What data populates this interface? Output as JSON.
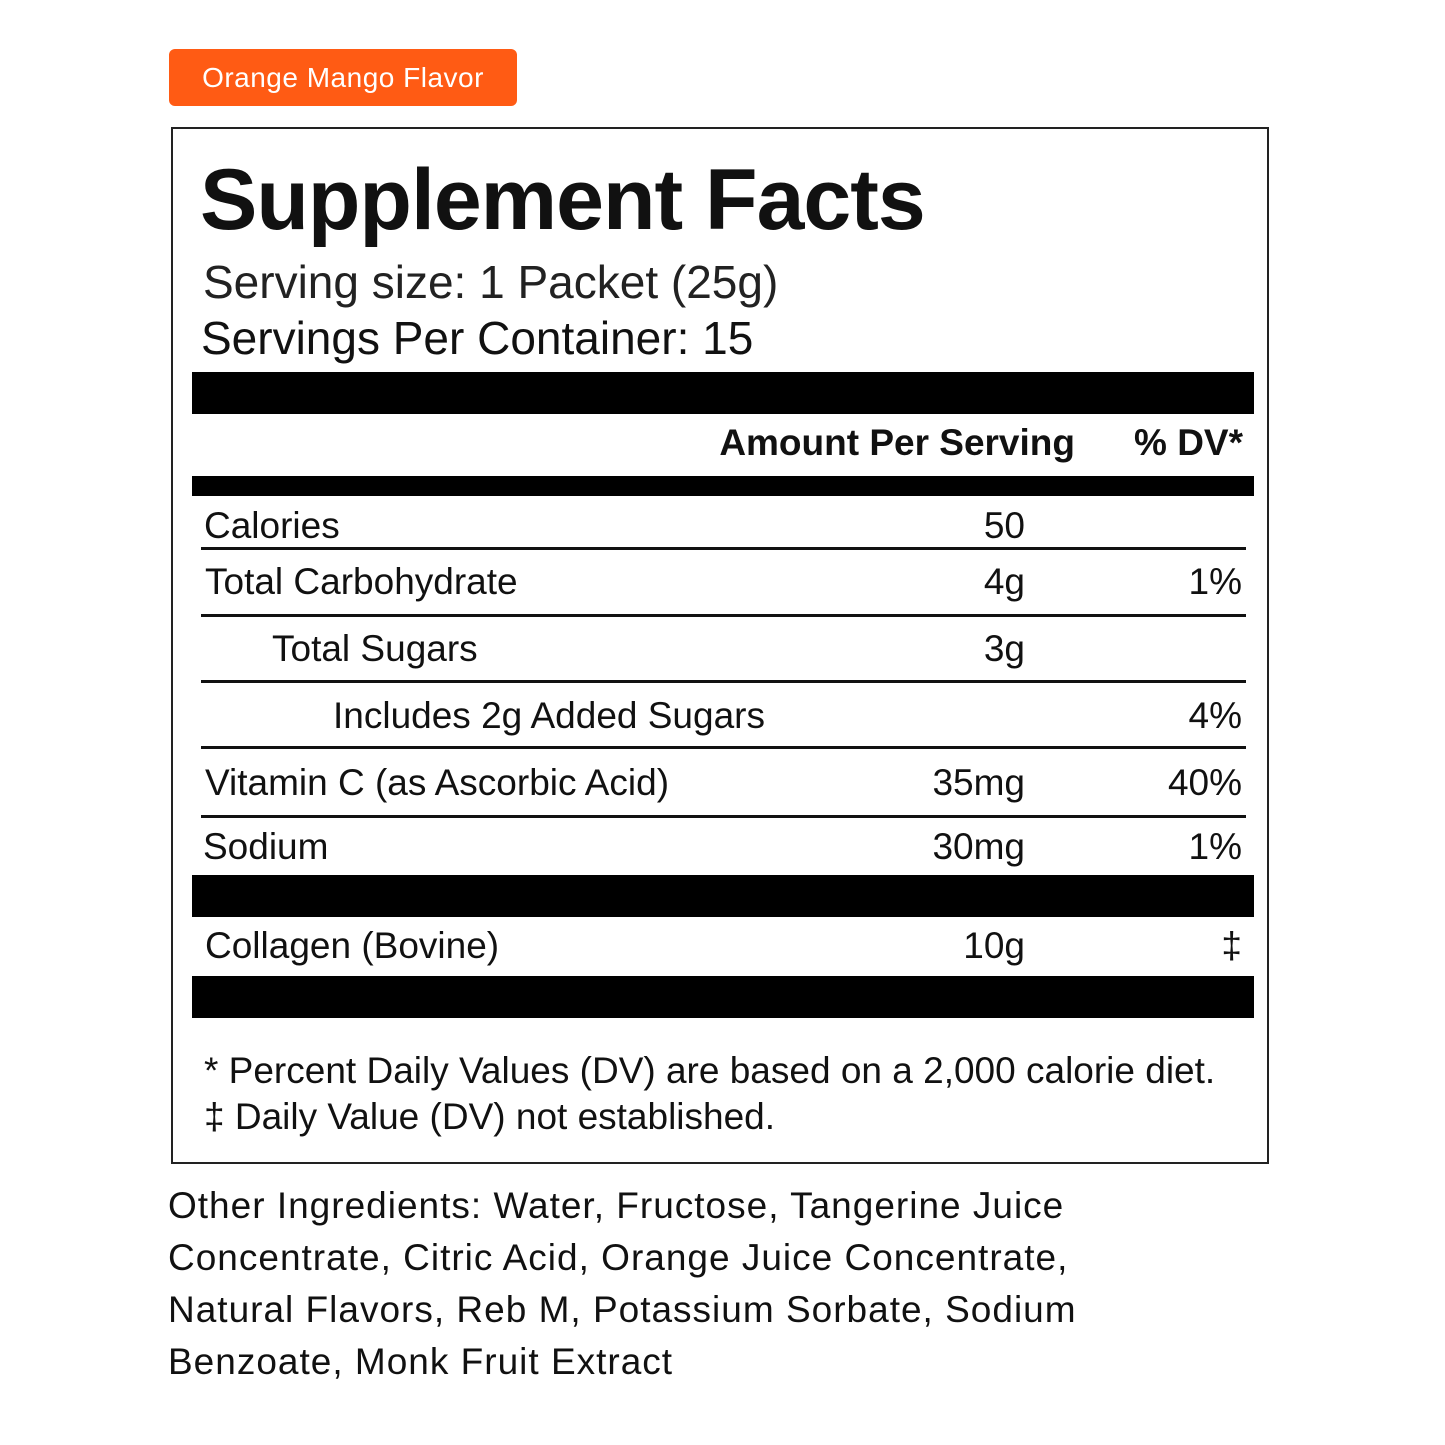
{
  "flavor_badge": "Orange Mango Flavor",
  "colors": {
    "badge": "#ff5b14",
    "bars": "#000000",
    "text": "#111111"
  },
  "facts": {
    "title": "Supplement Facts",
    "serving_size": "Serving size: 1 Packet (25g)",
    "servings_per_container": "Servings Per Container: 15",
    "header": {
      "amount": "Amount Per Serving",
      "dv": "% DV*"
    },
    "rows": [
      {
        "label": "Calories",
        "amount": "50",
        "dv": ""
      },
      {
        "label": "Total Carbohydrate",
        "amount": "4g",
        "dv": "1%"
      },
      {
        "label": "Total Sugars",
        "amount": "3g",
        "dv": ""
      },
      {
        "label": "Includes 2g Added Sugars",
        "amount": "",
        "dv": "4%"
      },
      {
        "label": "Vitamin C (as Ascorbic Acid)",
        "amount": "35mg",
        "dv": "40%"
      },
      {
        "label": "Sodium",
        "amount": "30mg",
        "dv": "1%"
      },
      {
        "label": "Collagen (Bovine)",
        "amount": "10g",
        "dv": "‡"
      }
    ],
    "footnotes": [
      "* Percent Daily Values (DV) are based on a 2,000 calorie diet.",
      "‡ Daily Value (DV) not established."
    ]
  },
  "other_ingredients": "Other Ingredients: Water, Fructose, Tangerine Juice Concentrate, Citric Acid, Orange Juice Concentrate, Natural Flavors, Reb M, Potassium Sorbate, Sodium Benzoate, Monk Fruit Extract"
}
